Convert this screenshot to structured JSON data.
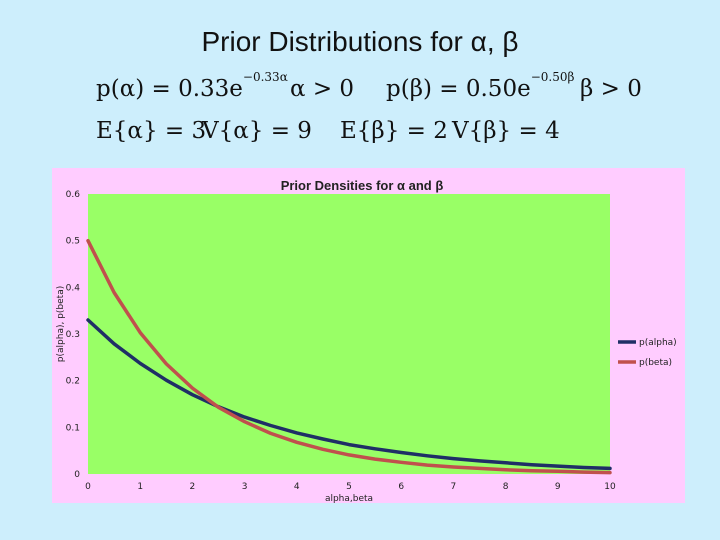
{
  "slide": {
    "title": "Prior Distributions for α, β",
    "formula_alpha": "p(α) = 0.33e",
    "formula_alpha_exp": "−0.33α",
    "formula_alpha_cond": "α > 0",
    "formula_beta": "p(β) = 0.50e",
    "formula_beta_exp": "−0.50β",
    "formula_beta_cond": "β > 0",
    "expect_alpha": "E{α} = 3",
    "var_alpha": "V{α} = 9",
    "expect_beta": "E{β} = 2",
    "var_beta": "V{β} = 4"
  },
  "colors": {
    "slide_bg": "#cdeefc",
    "chart_bg": "#ffccff",
    "plot_bg": "#99ff66",
    "alpha_line": "#1f2f66",
    "beta_line": "#c0504d"
  },
  "chart_data": {
    "type": "line",
    "title": "Prior Densities for α and β",
    "xlabel": "alpha,beta",
    "ylabel": "p(alpha), p(beta)",
    "xlim": [
      0,
      10
    ],
    "ylim": [
      0,
      0.6
    ],
    "x_ticks": [
      "0",
      "1",
      "2",
      "3",
      "4",
      "5",
      "6",
      "7",
      "8",
      "9",
      "10"
    ],
    "y_ticks": [
      "0",
      "0.1",
      "0.2",
      "0.3",
      "0.4",
      "0.5",
      "0.6"
    ],
    "grid": false,
    "legend_position": "right",
    "series": [
      {
        "name": "p(alpha)",
        "color": "#1f2f66",
        "x": [
          0,
          0.5,
          1,
          1.5,
          2,
          2.5,
          3,
          3.5,
          4,
          4.5,
          5,
          5.5,
          6,
          6.5,
          7,
          7.5,
          8,
          8.5,
          9,
          9.5,
          10
        ],
        "y": [
          0.33,
          0.279,
          0.237,
          0.201,
          0.17,
          0.144,
          0.122,
          0.104,
          0.088,
          0.075,
          0.063,
          0.054,
          0.046,
          0.039,
          0.033,
          0.028,
          0.024,
          0.02,
          0.017,
          0.014,
          0.012
        ]
      },
      {
        "name": "p(beta)",
        "color": "#c0504d",
        "x": [
          0,
          0.5,
          1,
          1.5,
          2,
          2.5,
          3,
          3.5,
          4,
          4.5,
          5,
          5.5,
          6,
          6.5,
          7,
          7.5,
          8,
          8.5,
          9,
          9.5,
          10
        ],
        "y": [
          0.5,
          0.389,
          0.303,
          0.236,
          0.184,
          0.143,
          0.112,
          0.087,
          0.068,
          0.053,
          0.041,
          0.032,
          0.025,
          0.019,
          0.015,
          0.012,
          0.009,
          0.007,
          0.006,
          0.004,
          0.003
        ]
      }
    ]
  }
}
